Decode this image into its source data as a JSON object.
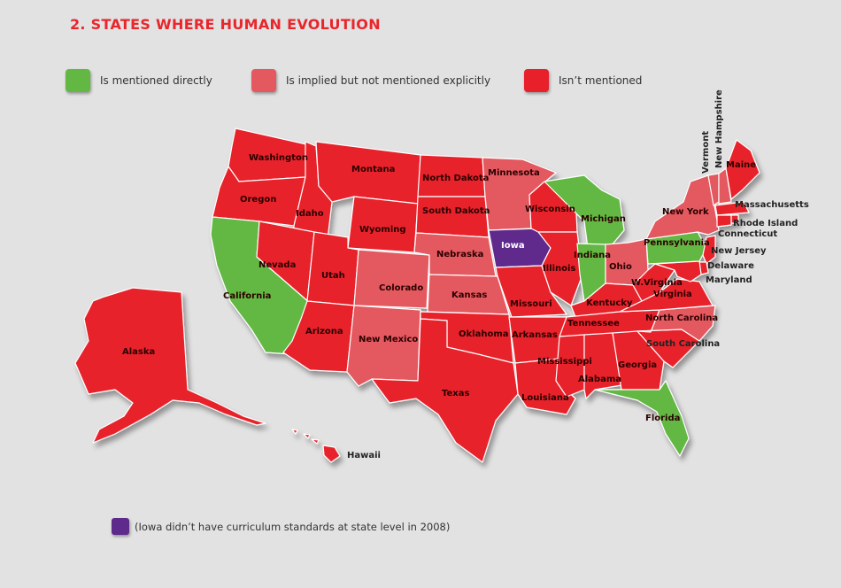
{
  "title": "2. STATES WHERE HUMAN EVOLUTION",
  "colors": {
    "mentioned": "#62b843",
    "implied": "#e4585f",
    "not_mentioned": "#e8202a",
    "no_standards": "#5e2a8c",
    "background": "#e2e2e2"
  },
  "legend": [
    {
      "label": "Is mentioned directly",
      "color": "#62b843"
    },
    {
      "label": "Is implied but not mentioned explicitly",
      "color": "#e4585f"
    },
    {
      "label": "Isn’t mentioned",
      "color": "#e8202a"
    }
  ],
  "note": {
    "label": "(Iowa didn’t have curriculum standards at state level in 2008)",
    "color": "#5e2a8c"
  },
  "states": {
    "washington": "Washington",
    "oregon": "Oregon",
    "california": "California",
    "idaho": "Idaho",
    "nevada": "Nevada",
    "montana": "Montana",
    "wyoming": "Wyoming",
    "utah": "Utah",
    "arizona": "Arizona",
    "colorado": "Colorado",
    "new_mexico": "New Mexico",
    "north_dakota": "North Dakota",
    "south_dakota": "South Dakota",
    "nebraska": "Nebraska",
    "kansas": "Kansas",
    "oklahoma": "Oklahoma",
    "texas": "Texas",
    "minnesota": "Minnesota",
    "iowa": "Iowa",
    "missouri": "Missouri",
    "arkansas": "Arkansas",
    "louisiana": "Louisiana",
    "wisconsin": "Wisconsin",
    "illinois": "Illinois",
    "michigan": "Michigan",
    "indiana": "Indiana",
    "ohio": "Ohio",
    "kentucky": "Kentucky",
    "tennessee": "Tennessee",
    "mississippi": "Mississippi",
    "alabama": "Alabama",
    "georgia": "Georgia",
    "florida": "Florida",
    "south_carolina": "South Carolina",
    "north_carolina": "North Carolina",
    "virginia": "Virginia",
    "west_virginia": "W.Virginia",
    "pennsylvania": "Pennsylvania",
    "new_york": "New York",
    "vermont": "Vermont",
    "new_hampshire": "New Hampshire",
    "maine": "Maine",
    "massachusetts": "Massachusetts",
    "rhode_island": "Rhode Island",
    "connecticut": "Connecticut",
    "new_jersey": "New Jersey",
    "delaware": "Delaware",
    "maryland": "Maryland",
    "alaska": "Alaska",
    "hawaii": "Hawaii"
  }
}
